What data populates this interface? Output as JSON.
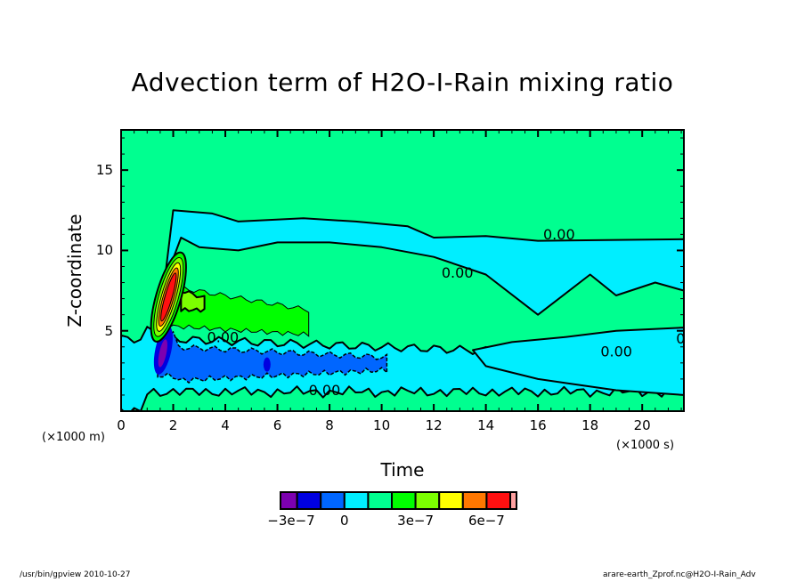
{
  "chart_data": {
    "type": "heatmap",
    "subtype": "filled-contour",
    "title": "Advection term of H2O-I-Rain mixing ratio",
    "xlabel": "Time",
    "ylabel": "Z-coordinate",
    "x_unit_label": "(×1000 s)",
    "y_unit_label": "(×1000 m)",
    "xlim": [
      0,
      21.6
    ],
    "ylim": [
      0,
      17.5
    ],
    "x_ticks": [
      0,
      2,
      4,
      6,
      8,
      10,
      12,
      14,
      16,
      18,
      20
    ],
    "x_tick_labels": [
      "0",
      "2",
      "4",
      "6",
      "8",
      "10",
      "12",
      "14",
      "16",
      "18",
      "20"
    ],
    "x_minor_step": 0.5,
    "y_ticks": [
      5,
      10,
      15
    ],
    "y_tick_labels": [
      "5",
      "10",
      "15"
    ],
    "y_minor_step": 1,
    "grid": false,
    "contour_labels": [
      "0.00",
      "0.00",
      "0.00",
      "0.00",
      "0.00",
      "0.00"
    ],
    "colorbar": {
      "placement": "bottom",
      "levels": [
        -3e-07,
        -2e-07,
        -1e-07,
        0,
        1e-07,
        2e-07,
        3e-07,
        4e-07,
        5e-07,
        6e-07,
        7e-07
      ],
      "colors": [
        "#7c00b0",
        "#0000e0",
        "#0066ff",
        "#00eeff",
        "#00ff90",
        "#00ff00",
        "#7cff00",
        "#ffff00",
        "#ff7700",
        "#ff1010",
        "#ffa0a0"
      ],
      "tick_values": [
        -3e-07,
        0,
        3e-07,
        6e-07
      ],
      "tick_labels": [
        "−3e−7",
        "0",
        "3e−7",
        "6e−7"
      ]
    },
    "background_value_band": "0 to 1e-7",
    "regions": [
      {
        "name": "upper-cyan-band",
        "level_index": 3,
        "description": "slightly negative near cloud top",
        "x_range": [
          2,
          21.6
        ],
        "z_range": [
          9.5,
          13
        ]
      },
      {
        "name": "lower-cyan-band",
        "level_index": 3,
        "description": "negative layer at low levels",
        "x_range": [
          0,
          21.6
        ],
        "z_range": [
          1,
          5
        ]
      },
      {
        "name": "blue-core",
        "level_index": 2,
        "description": "strong negative advection",
        "x_range": [
          1.4,
          10.3
        ],
        "z_range": [
          1.8,
          4.2
        ]
      },
      {
        "name": "deep-blue-core",
        "level_index": 1,
        "x_range": [
          1.3,
          1.9
        ],
        "z_range": [
          2.5,
          5
        ]
      },
      {
        "name": "purple-core",
        "level_index": 0,
        "x_range": [
          1.45,
          1.75
        ],
        "z_range": [
          2.8,
          4.5
        ]
      },
      {
        "name": "green-plume",
        "level_index": 5,
        "description": "positive advection aloft",
        "x_range": [
          1.7,
          7.2
        ],
        "z_range": [
          4.8,
          8.2
        ]
      },
      {
        "name": "lime-plume",
        "level_index": 6,
        "x_range": [
          2.2,
          7.2
        ],
        "z_range": [
          5.2,
          7.5
        ]
      },
      {
        "name": "updraft-column",
        "level_index": 9,
        "description": "max positive near t≈1700 s",
        "x_range": [
          1.4,
          2.0
        ],
        "z_range": [
          4.5,
          9.5
        ]
      }
    ]
  },
  "footer": {
    "left": "/usr/bin/gpview   2010-10-27",
    "right": "arare-earth_Zprof.nc@H2O-I-Rain_Adv"
  }
}
